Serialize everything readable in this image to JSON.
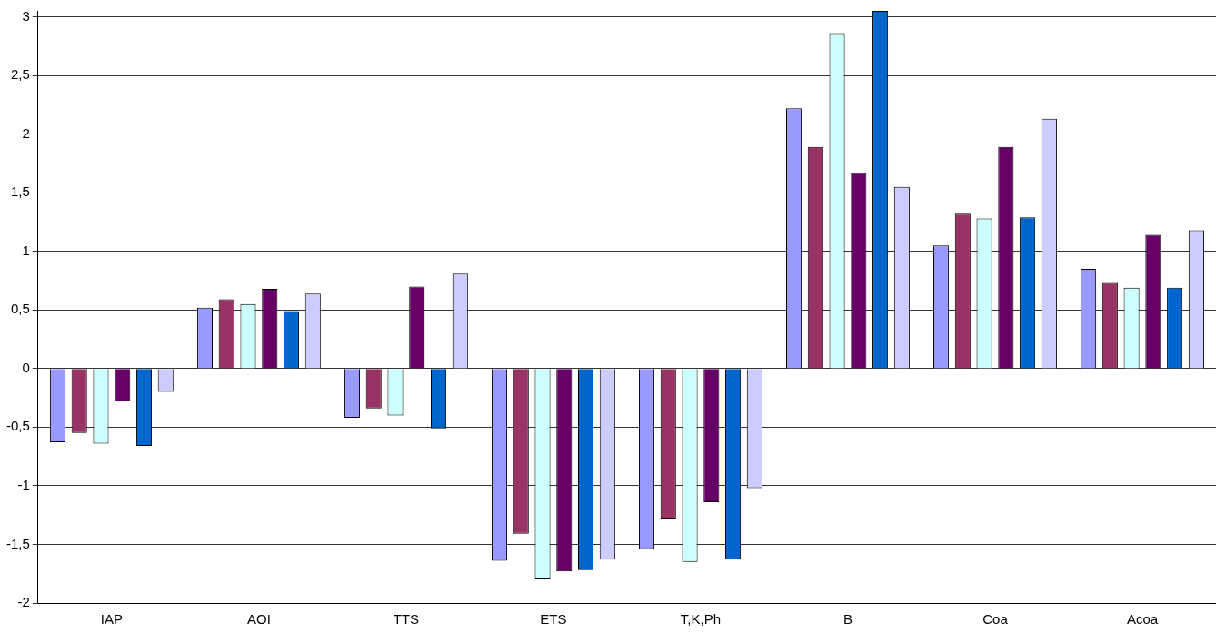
{
  "chart_data": {
    "type": "bar",
    "categories": [
      "IAP",
      "AOI",
      "TTS",
      "ETS",
      "T,K,Ph",
      "B",
      "Coa",
      "Acoa"
    ],
    "series": [
      {
        "color": "#9999ff",
        "values": [
          -0.63,
          0.52,
          -0.42,
          -1.64,
          -1.54,
          2.22,
          1.05,
          0.85
        ]
      },
      {
        "color": "#993366",
        "values": [
          -0.55,
          0.59,
          -0.34,
          -1.41,
          -1.28,
          1.89,
          1.32,
          0.73
        ]
      },
      {
        "color": "#ccffff",
        "values": [
          -0.64,
          0.55,
          -0.4,
          -1.79,
          -1.65,
          2.86,
          1.28,
          0.69
        ]
      },
      {
        "color": "#660066",
        "values": [
          -0.28,
          0.68,
          0.7,
          -1.73,
          -1.14,
          1.67,
          1.89,
          1.14
        ]
      },
      {
        "color": "#0066cc",
        "values": [
          -0.66,
          0.49,
          -0.51,
          -1.72,
          -1.63,
          3.05,
          1.29,
          0.69
        ]
      },
      {
        "color": "#ccccff",
        "values": [
          -0.2,
          0.64,
          0.81,
          -1.63,
          -1.02,
          1.55,
          2.13,
          1.18
        ]
      }
    ],
    "ylim": [
      -2,
      3.05
    ],
    "yticks": [
      {
        "value": -2,
        "label": "-2"
      },
      {
        "value": -1.5,
        "label": "-1,5"
      },
      {
        "value": -1,
        "label": "-1"
      },
      {
        "value": -0.5,
        "label": "-0,5"
      },
      {
        "value": 0,
        "label": "0"
      },
      {
        "value": 0.5,
        "label": "0,5"
      },
      {
        "value": 1,
        "label": "1"
      },
      {
        "value": 1.5,
        "label": "1,5"
      },
      {
        "value": 2,
        "label": "2"
      },
      {
        "value": 2.5,
        "label": "2,5"
      },
      {
        "value": 3,
        "label": "3"
      }
    ],
    "grid": "y",
    "legend": false
  }
}
